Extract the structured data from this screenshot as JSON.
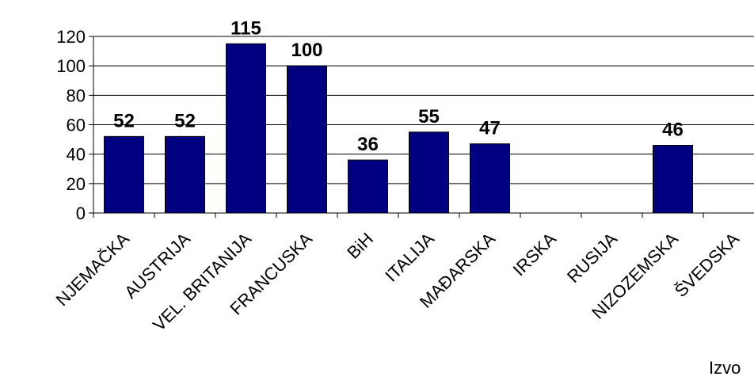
{
  "chart_data": {
    "type": "bar",
    "categories": [
      "NJEMAČKA",
      "AUSTRIJA",
      "VEL. BRITANIJA",
      "FRANCUSKA",
      "BiH",
      "ITALIJA",
      "MAĐARSKA",
      "IRSKA",
      "RUSIJA",
      "NIZOZEMSKA",
      "ŠVEDSKA"
    ],
    "values": [
      52,
      52,
      115,
      100,
      36,
      55,
      47,
      null,
      null,
      46,
      null
    ],
    "color": "#000080",
    "ylim": [
      0,
      120
    ],
    "yticks": [
      0,
      20,
      40,
      60,
      80,
      100,
      120
    ],
    "grid": true,
    "annotation": "Izvo"
  }
}
